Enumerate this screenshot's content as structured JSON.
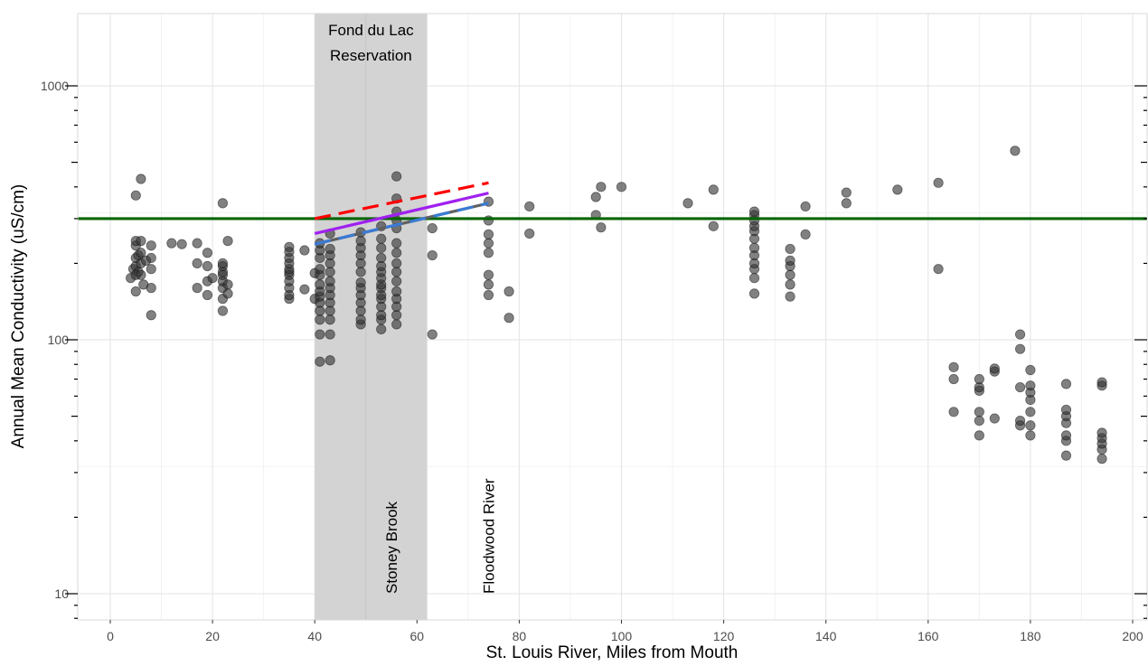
{
  "chart_data": {
    "type": "scatter",
    "title": "",
    "xlabel": "St. Louis River, Miles from Mouth",
    "ylabel": "Annual Mean Conductivity (uS/cm)",
    "xlim": [
      -6,
      202
    ],
    "ylim": [
      8,
      1800
    ],
    "yscale": "log",
    "grid": true,
    "x_ticks": [
      0,
      20,
      40,
      60,
      80,
      100,
      120,
      140,
      160,
      180,
      200
    ],
    "x_tick_labels": [
      "0",
      "20",
      "40",
      "60",
      "80",
      "100",
      "120",
      "140",
      "160",
      "180",
      "200"
    ],
    "y_ticks": [
      10,
      100,
      1000
    ],
    "y_tick_labels": [
      "10",
      "100",
      "1000"
    ],
    "shaded_region": {
      "x": [
        40,
        62
      ],
      "label_lines": [
        "Fond du Lac",
        "Reservation"
      ],
      "color": "#d3d3d3"
    },
    "vertical_annotations": [
      {
        "x": 55,
        "text": "Stoney Brook"
      },
      {
        "x": 74,
        "text": "Floodwood River"
      }
    ],
    "reference_line": {
      "y": 300,
      "color": "#006400"
    },
    "trend_lines": [
      {
        "x": [
          40,
          74
        ],
        "y": [
          300,
          415
        ],
        "color": "#ff0000",
        "style": "dashed"
      },
      {
        "x": [
          40,
          74
        ],
        "y": [
          262,
          378
        ],
        "color": "#a020f0",
        "style": "solid"
      },
      {
        "x": [
          40,
          74
        ],
        "y": [
          238,
          345
        ],
        "color": "#3a7bd5",
        "style": "two-tone-dashed"
      }
    ],
    "point_color": "#333333",
    "points": [
      [
        4,
        175
      ],
      [
        4.5,
        190
      ],
      [
        5,
        155
      ],
      [
        5,
        180
      ],
      [
        5,
        195
      ],
      [
        5,
        210
      ],
      [
        5,
        235
      ],
      [
        5,
        245
      ],
      [
        5,
        370
      ],
      [
        5.5,
        185
      ],
      [
        5.5,
        215
      ],
      [
        6,
        180
      ],
      [
        6,
        200
      ],
      [
        6,
        430
      ],
      [
        6,
        245
      ],
      [
        6,
        220
      ],
      [
        6.5,
        165
      ],
      [
        7,
        205
      ],
      [
        8,
        235
      ],
      [
        8,
        210
      ],
      [
        8,
        190
      ],
      [
        8,
        160
      ],
      [
        8,
        125
      ],
      [
        12,
        240
      ],
      [
        14,
        238
      ],
      [
        17,
        160
      ],
      [
        17,
        200
      ],
      [
        17,
        240
      ],
      [
        19,
        150
      ],
      [
        19,
        170
      ],
      [
        19,
        195
      ],
      [
        19,
        220
      ],
      [
        20,
        175
      ],
      [
        22,
        130
      ],
      [
        22,
        145
      ],
      [
        22,
        160
      ],
      [
        22,
        170
      ],
      [
        22,
        180
      ],
      [
        22,
        185
      ],
      [
        22,
        195
      ],
      [
        22,
        200
      ],
      [
        22,
        345
      ],
      [
        23,
        152
      ],
      [
        23,
        165
      ],
      [
        23,
        245
      ],
      [
        35,
        145
      ],
      [
        35,
        150
      ],
      [
        35,
        160
      ],
      [
        35,
        170
      ],
      [
        35,
        180
      ],
      [
        35,
        185
      ],
      [
        35,
        190
      ],
      [
        35,
        200
      ],
      [
        35,
        210
      ],
      [
        35,
        222
      ],
      [
        35,
        232
      ],
      [
        38,
        158
      ],
      [
        38,
        225
      ],
      [
        40,
        145
      ],
      [
        40,
        183
      ],
      [
        41,
        82
      ],
      [
        41,
        105
      ],
      [
        41,
        120
      ],
      [
        41,
        130
      ],
      [
        41,
        140
      ],
      [
        41,
        148
      ],
      [
        41,
        155
      ],
      [
        41,
        165
      ],
      [
        41,
        180
      ],
      [
        41,
        190
      ],
      [
        41,
        210
      ],
      [
        41,
        225
      ],
      [
        41,
        240
      ],
      [
        43,
        83
      ],
      [
        43,
        105
      ],
      [
        43,
        120
      ],
      [
        43,
        130
      ],
      [
        43,
        140
      ],
      [
        43,
        150
      ],
      [
        43,
        160
      ],
      [
        43,
        170
      ],
      [
        43,
        185
      ],
      [
        43,
        200
      ],
      [
        43,
        215
      ],
      [
        43,
        228
      ],
      [
        43,
        262
      ],
      [
        49,
        115
      ],
      [
        49,
        120
      ],
      [
        49,
        130
      ],
      [
        49,
        140
      ],
      [
        49,
        150
      ],
      [
        49,
        160
      ],
      [
        49,
        168
      ],
      [
        49,
        185
      ],
      [
        49,
        200
      ],
      [
        49,
        215
      ],
      [
        49,
        230
      ],
      [
        49,
        245
      ],
      [
        49,
        265
      ],
      [
        53,
        110
      ],
      [
        53,
        120
      ],
      [
        53,
        125
      ],
      [
        53,
        135
      ],
      [
        53,
        145
      ],
      [
        53,
        150
      ],
      [
        53,
        160
      ],
      [
        53,
        165
      ],
      [
        53,
        175
      ],
      [
        53,
        185
      ],
      [
        53,
        195
      ],
      [
        53,
        210
      ],
      [
        53,
        230
      ],
      [
        53,
        250
      ],
      [
        53,
        280
      ],
      [
        56,
        115
      ],
      [
        56,
        125
      ],
      [
        56,
        135
      ],
      [
        56,
        145
      ],
      [
        56,
        155
      ],
      [
        56,
        170
      ],
      [
        56,
        185
      ],
      [
        56,
        200
      ],
      [
        56,
        220
      ],
      [
        56,
        240
      ],
      [
        56,
        275
      ],
      [
        56,
        295
      ],
      [
        56,
        320
      ],
      [
        56,
        360
      ],
      [
        56,
        440
      ],
      [
        63,
        105
      ],
      [
        63,
        215
      ],
      [
        63,
        275
      ],
      [
        74,
        150
      ],
      [
        74,
        165
      ],
      [
        74,
        180
      ],
      [
        74,
        220
      ],
      [
        74,
        240
      ],
      [
        74,
        260
      ],
      [
        74,
        295
      ],
      [
        74,
        350
      ],
      [
        78,
        122
      ],
      [
        78,
        155
      ],
      [
        82,
        262
      ],
      [
        82,
        335
      ],
      [
        95,
        310
      ],
      [
        95,
        365
      ],
      [
        96,
        277
      ],
      [
        96,
        400
      ],
      [
        100,
        400
      ],
      [
        113,
        345
      ],
      [
        118,
        280
      ],
      [
        118,
        390
      ],
      [
        126,
        152
      ],
      [
        126,
        175
      ],
      [
        126,
        190
      ],
      [
        126,
        200
      ],
      [
        126,
        215
      ],
      [
        126,
        230
      ],
      [
        126,
        250
      ],
      [
        126,
        268
      ],
      [
        126,
        280
      ],
      [
        126,
        295
      ],
      [
        126,
        310
      ],
      [
        126,
        320
      ],
      [
        133,
        148
      ],
      [
        133,
        165
      ],
      [
        133,
        180
      ],
      [
        133,
        195
      ],
      [
        133,
        205
      ],
      [
        133,
        228
      ],
      [
        136,
        260
      ],
      [
        136,
        335
      ],
      [
        144,
        345
      ],
      [
        144,
        380
      ],
      [
        154,
        390
      ],
      [
        162,
        190
      ],
      [
        162,
        415
      ],
      [
        165,
        52
      ],
      [
        165,
        70
      ],
      [
        165,
        78
      ],
      [
        170,
        42
      ],
      [
        170,
        48
      ],
      [
        170,
        52
      ],
      [
        170,
        63
      ],
      [
        170,
        65
      ],
      [
        170,
        70
      ],
      [
        173,
        49
      ],
      [
        173,
        75
      ],
      [
        173,
        77
      ],
      [
        177,
        555
      ],
      [
        178,
        46
      ],
      [
        178,
        48
      ],
      [
        178,
        65
      ],
      [
        178,
        92
      ],
      [
        178,
        105
      ],
      [
        180,
        42
      ],
      [
        180,
        46
      ],
      [
        180,
        52
      ],
      [
        180,
        58
      ],
      [
        180,
        62
      ],
      [
        180,
        66
      ],
      [
        180,
        76
      ],
      [
        187,
        35
      ],
      [
        187,
        40
      ],
      [
        187,
        42
      ],
      [
        187,
        47
      ],
      [
        187,
        50
      ],
      [
        187,
        53
      ],
      [
        187,
        67
      ],
      [
        194,
        34
      ],
      [
        194,
        37
      ],
      [
        194,
        39
      ],
      [
        194,
        41
      ],
      [
        194,
        43
      ],
      [
        194,
        66
      ],
      [
        194,
        68
      ]
    ]
  }
}
